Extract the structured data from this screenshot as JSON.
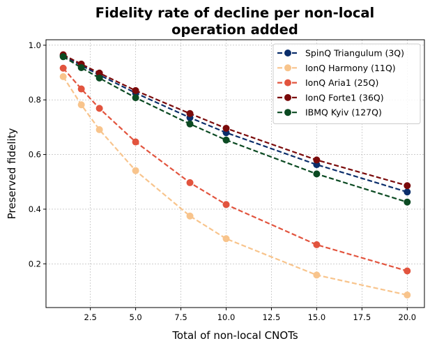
{
  "chart_data": {
    "type": "line",
    "title": "Fidelity rate of decline per non-local operation added",
    "title_lines": [
      "Fidelity rate of decline per non-local",
      "operation added"
    ],
    "xlabel": "Total of non-local CNOTs",
    "ylabel": "Preserved fidelity",
    "xlim": [
      0.05,
      20.95
    ],
    "ylim": [
      0.04,
      1.02
    ],
    "xticks": [
      2.5,
      5.0,
      7.5,
      10.0,
      12.5,
      15.0,
      17.5,
      20.0
    ],
    "xtick_labels": [
      "2.5",
      "5.0",
      "7.5",
      "10.0",
      "12.5",
      "15.0",
      "17.5",
      "20.0"
    ],
    "yticks": [
      0.2,
      0.4,
      0.6,
      0.8,
      1.0
    ],
    "ytick_labels": [
      "0.2",
      "0.4",
      "0.6",
      "0.8",
      "1.0"
    ],
    "grid": true,
    "legend_position": "top-right",
    "x": [
      1,
      2,
      3,
      5,
      8,
      10,
      15,
      20
    ],
    "series": [
      {
        "name": "SpinQ Triangulum (3Q)",
        "color": "#0b2e6b",
        "values": [
          0.962,
          0.926,
          0.891,
          0.825,
          0.735,
          0.68,
          0.563,
          0.463
        ]
      },
      {
        "name": "IonQ Harmony (11Q)",
        "color": "#f8c48c",
        "values": [
          0.885,
          0.782,
          0.691,
          0.541,
          0.375,
          0.292,
          0.159,
          0.086
        ]
      },
      {
        "name": "IonQ Aria1 (25Q)",
        "color": "#e2543e",
        "values": [
          0.916,
          0.84,
          0.769,
          0.646,
          0.497,
          0.417,
          0.27,
          0.174
        ]
      },
      {
        "name": "IonQ Forte1 (36Q)",
        "color": "#7a0a0a",
        "values": [
          0.965,
          0.931,
          0.898,
          0.834,
          0.75,
          0.696,
          0.58,
          0.486
        ]
      },
      {
        "name": "IBMQ Kyiv (127Q)",
        "color": "#0b4a22",
        "values": [
          0.958,
          0.918,
          0.88,
          0.808,
          0.712,
          0.653,
          0.529,
          0.426
        ]
      }
    ]
  }
}
